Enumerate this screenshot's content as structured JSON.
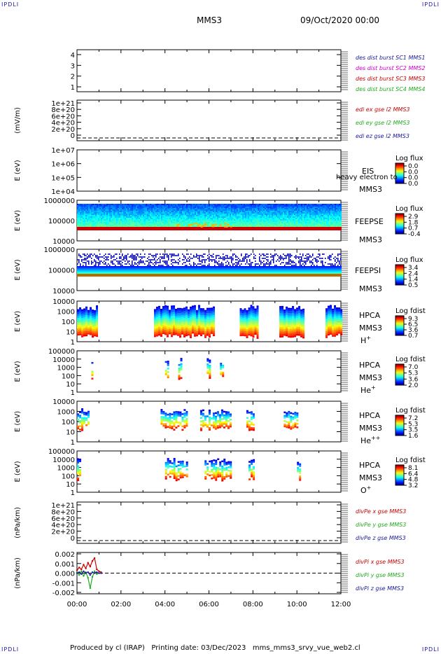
{
  "header": {
    "corner_label": "IPDLI",
    "spacecraft": "MMS3",
    "date": "09/Oct/2020 00:00"
  },
  "footer": {
    "produced_by": "Produced by cl (IRAP)",
    "printing_date": "Printing date: 03/Dec/2023",
    "filename": "mms_mms3_srvy_vue_web2.cl"
  },
  "colors": {
    "black": "#000000",
    "red": "#cc0000",
    "green": "#22aa22",
    "blue": "#1a1a9e",
    "magenta": "#cc00cc",
    "grey": "#d8d8d8"
  },
  "chart_data": [
    {
      "id": "burst",
      "type": "line",
      "yticks": [
        "1",
        "2",
        "3",
        "4"
      ],
      "ylim": [
        0.6,
        4.4
      ],
      "legend": [
        {
          "label": "des dist burst SC1 MMS1",
          "color": "#1a1a9e"
        },
        {
          "label": "des dist burst SC2 MMS2",
          "color": "#cc00cc"
        },
        {
          "label": "des dist burst SC3 MMS3",
          "color": "#cc0000"
        },
        {
          "label": "des dist burst SC4 MMS4",
          "color": "#22aa22"
        }
      ]
    },
    {
      "id": "edi",
      "type": "line",
      "ylabel": "(mV/m)",
      "yticks": [
        "1e+21",
        "8e+20",
        "6e+20",
        "4e+20",
        "2e+20",
        "0"
      ],
      "ylim": [
        -1e+20,
        1.05e+21
      ],
      "zero_line": true,
      "legend": [
        {
          "label": "edi ex gse l2 MMS3",
          "color": "#cc0000"
        },
        {
          "label": "edi ey gse l2 MMS3",
          "color": "#22aa22"
        },
        {
          "label": "edi ez gse l2 MMS3",
          "color": "#1a1a9e"
        }
      ]
    },
    {
      "id": "eis",
      "type": "heatmap",
      "ylabel": "E (eV)",
      "yticks": [
        "1e+07",
        "1e+06",
        "1e+05",
        "1e+04"
      ],
      "ylim": [
        10000,
        10000000
      ],
      "yscale": "log",
      "instrument": "EIS",
      "probe": "MMS3",
      "overlay": "heavy electron to",
      "colorbar": {
        "title": "Log flux",
        "ticks": [
          "0.0",
          "0.0",
          "0.0",
          "0.0"
        ]
      }
    },
    {
      "id": "feepse",
      "type": "heatmap",
      "ylabel": "E (eV)",
      "yticks": [
        "1000000",
        "100000",
        "10000"
      ],
      "ylim": [
        10000,
        1000000
      ],
      "yscale": "log",
      "instrument": "FEEPSE",
      "probe": "MMS3",
      "colorbar": {
        "title": "Log flux",
        "ticks": [
          "2.9",
          "1.8",
          "0.7",
          "-0.4"
        ]
      }
    },
    {
      "id": "feepsi",
      "type": "heatmap",
      "ylabel": "E (eV)",
      "yticks": [
        "1000000",
        "100000",
        "10000"
      ],
      "ylim": [
        10000,
        1000000
      ],
      "yscale": "log",
      "instrument": "FEEPSI",
      "probe": "MMS3",
      "colorbar": {
        "title": "Log flux",
        "ticks": [
          "3.4",
          "2.4",
          "1.4",
          "0.5"
        ]
      }
    },
    {
      "id": "hpca_h",
      "type": "heatmap",
      "ylabel": "E (eV)",
      "yticks": [
        "10000",
        "1000",
        "100",
        "10",
        "1"
      ],
      "ylim": [
        1,
        20000
      ],
      "yscale": "log",
      "instrument": "HPCA",
      "probe": "MMS3",
      "species": "H",
      "charge": "+",
      "colorbar": {
        "title": "Log fdist",
        "ticks": [
          "9.3",
          "6.5",
          "3.6",
          "0.7"
        ]
      }
    },
    {
      "id": "hpca_he",
      "type": "heatmap",
      "ylabel": "E (eV)",
      "yticks": [
        "100000",
        "10000",
        "1000",
        "100",
        "10",
        "1"
      ],
      "ylim": [
        1,
        100000
      ],
      "yscale": "log",
      "instrument": "HPCA",
      "probe": "MMS3",
      "species": "He",
      "charge": "+",
      "colorbar": {
        "title": "Log fdist",
        "ticks": [
          "7.0",
          "5.3",
          "3.6",
          "2.0"
        ]
      }
    },
    {
      "id": "hpca_he2",
      "type": "heatmap",
      "ylabel": "E (eV)",
      "yticks": [
        "10000",
        "1000",
        "100",
        "10",
        "1"
      ],
      "ylim": [
        1,
        20000
      ],
      "yscale": "log",
      "instrument": "HPCA",
      "probe": "MMS3",
      "species": "He",
      "charge": "++",
      "colorbar": {
        "title": "Log fdist",
        "ticks": [
          "7.2",
          "5.3",
          "3.5",
          "1.6"
        ]
      }
    },
    {
      "id": "hpca_o",
      "type": "heatmap",
      "ylabel": "E (eV)",
      "yticks": [
        "100000",
        "10000",
        "1000",
        "100",
        "10",
        "1"
      ],
      "ylim": [
        1,
        100000
      ],
      "yscale": "log",
      "instrument": "HPCA",
      "probe": "MMS3",
      "species": "O",
      "charge": "+",
      "colorbar": {
        "title": "Log fdist",
        "ticks": [
          "8.1",
          "6.4",
          "4.8",
          "3.2"
        ]
      }
    },
    {
      "id": "divpe",
      "type": "line",
      "ylabel": "(nPa/km)",
      "yticks": [
        "1e+21",
        "8e+20",
        "6e+20",
        "4e+20",
        "2e+20",
        "0"
      ],
      "ylim": [
        -1e+20,
        1.05e+21
      ],
      "zero_line": true,
      "legend": [
        {
          "label": "divPe x gse MMS3",
          "color": "#cc0000"
        },
        {
          "label": "divPe y gse MMS3",
          "color": "#22aa22"
        },
        {
          "label": "divPe z gse MMS3",
          "color": "#1a1a9e"
        }
      ]
    },
    {
      "id": "divpi",
      "type": "line",
      "ylabel": "(nPa/km)",
      "yticks": [
        "0.002",
        "0.001",
        "0.000",
        "-0.001",
        "-0.002"
      ],
      "ylim": [
        -0.0022,
        0.0022
      ],
      "zero_line": true,
      "legend": [
        {
          "label": "divPi x gse MMS3",
          "color": "#cc0000"
        },
        {
          "label": "divPi y gse MMS3",
          "color": "#22aa22"
        },
        {
          "label": "divPi z gse MMS3",
          "color": "#1a1a9e"
        }
      ],
      "series": [
        {
          "name": "divPi x gse MMS3",
          "color": "#cc0000",
          "x": [
            0.0,
            0.1,
            0.2,
            0.3,
            0.4,
            0.5,
            0.6,
            0.7,
            0.8,
            0.9,
            1.0,
            1.1
          ],
          "values": [
            0.0003,
            0.0006,
            0.0004,
            0.0009,
            0.0005,
            0.0011,
            0.0007,
            0.0013,
            0.0016,
            0.0004,
            0.0002,
            0.0001
          ]
        },
        {
          "name": "divPi y gse MMS3",
          "color": "#22aa22",
          "x": [
            0.0,
            0.1,
            0.2,
            0.3,
            0.4,
            0.5,
            0.6,
            0.7,
            0.8,
            0.9,
            1.0,
            1.1
          ],
          "values": [
            0.0001,
            -0.0002,
            0.0002,
            -0.0003,
            0.0001,
            -0.0005,
            -0.0016,
            -0.0004,
            0.0002,
            -0.0001,
            0.0,
            0.0
          ]
        },
        {
          "name": "divPi z gse MMS3",
          "color": "#1a1a9e",
          "x": [
            0.0,
            0.1,
            0.2,
            0.3,
            0.4,
            0.5,
            0.6,
            0.7,
            0.8,
            0.9,
            1.0,
            1.1
          ],
          "values": [
            0.0,
            0.0001,
            -0.0001,
            0.0002,
            0.0,
            0.0001,
            -0.0002,
            0.0001,
            0.0,
            0.0001,
            0.0,
            0.0
          ]
        }
      ]
    }
  ],
  "x_axis": {
    "ticks": [
      "00:00",
      "02:00",
      "04:00",
      "06:00",
      "08:00",
      "10:00",
      "12:00"
    ],
    "range_hours": [
      0,
      12
    ]
  },
  "coverage": {
    "feepse": [
      [
        0.0,
        12.0
      ]
    ],
    "feepsi": [
      [
        0.0,
        12.0
      ]
    ],
    "hpca_h": [
      [
        0.0,
        0.9
      ],
      [
        3.5,
        6.2
      ],
      [
        7.4,
        8.2
      ],
      [
        9.2,
        10.3
      ],
      [
        11.3,
        12.0
      ]
    ],
    "hpca_he": [
      [
        0.65,
        0.7
      ],
      [
        4.0,
        4.1
      ],
      [
        4.6,
        4.7
      ],
      [
        5.9,
        6.0
      ],
      [
        6.5,
        6.6
      ]
    ],
    "hpca_he2": [
      [
        0.0,
        0.5
      ],
      [
        3.8,
        5.0
      ],
      [
        5.6,
        7.0
      ],
      [
        7.7,
        8.0
      ],
      [
        9.4,
        10.0
      ]
    ],
    "hpca_o": [
      [
        0.0,
        0.1
      ],
      [
        4.0,
        5.0
      ],
      [
        5.8,
        7.0
      ],
      [
        7.8,
        8.0
      ],
      [
        10.0,
        10.1
      ]
    ]
  }
}
